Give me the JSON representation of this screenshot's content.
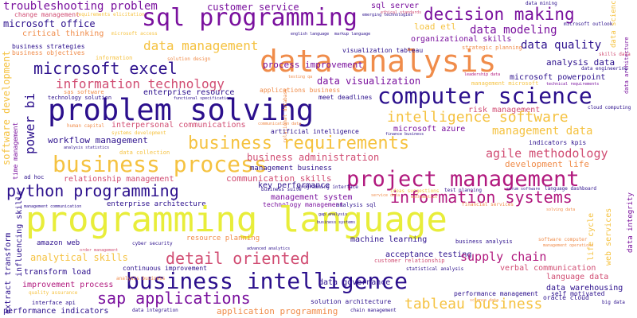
{
  "palette": {
    "purple": "#2b0f8c",
    "violet": "#7a119e",
    "magenta": "#b1197e",
    "rose": "#d14d73",
    "orange": "#f08c4a",
    "yellow": "#f5c240",
    "lime": "#e8ed3a"
  },
  "words": [
    {
      "text": "troubleshooting problem",
      "color": "violet"
    },
    {
      "text": "change management",
      "color": "rose"
    },
    {
      "text": "requirements elicitation",
      "color": "yellow"
    },
    {
      "text": "customer service",
      "color": "violet"
    },
    {
      "text": "sql server",
      "color": "violet"
    },
    {
      "text": "ethical standards",
      "color": "rose"
    },
    {
      "text": "data mining",
      "color": "purple"
    },
    {
      "text": "data science",
      "color": "yellow"
    },
    {
      "text": "sql programming",
      "color": "violet"
    },
    {
      "text": "decision making",
      "color": "violet"
    },
    {
      "text": "microsoft outlook",
      "color": "purple"
    },
    {
      "text": "microsoft office",
      "color": "purple"
    },
    {
      "text": "critical thinking",
      "color": "orange"
    },
    {
      "text": "microsoft access",
      "color": "yellow"
    },
    {
      "text": "data modeling",
      "color": "violet"
    },
    {
      "text": "data architecture",
      "color": "violet"
    },
    {
      "text": "load etl",
      "color": "yellow"
    },
    {
      "text": "emerging technologies",
      "color": "purple"
    },
    {
      "text": "english language",
      "color": "purple"
    },
    {
      "text": "markup language",
      "color": "purple"
    },
    {
      "text": "organizational skills",
      "color": "violet"
    },
    {
      "text": "data management",
      "color": "yellow"
    },
    {
      "text": "data analysis",
      "color": "orange"
    },
    {
      "text": "data quality",
      "color": "purple"
    },
    {
      "text": "business strategies",
      "color": "purple"
    },
    {
      "text": "business objectives",
      "color": "orange"
    },
    {
      "text": "process improvement",
      "color": "violet"
    },
    {
      "text": "visualization tableau",
      "color": "purple"
    },
    {
      "text": "strategic planning",
      "color": "orange"
    },
    {
      "text": "information",
      "color": "yellow"
    },
    {
      "text": "solution design",
      "color": "orange"
    },
    {
      "text": "analysis data",
      "color": "purple"
    },
    {
      "text": "skills data",
      "color": "rose"
    },
    {
      "text": "microsoft excel",
      "color": "purple"
    },
    {
      "text": "data engineering",
      "color": "purple"
    },
    {
      "text": "software development",
      "color": "yellow"
    },
    {
      "text": "information technology",
      "color": "rose"
    },
    {
      "text": "data visualization",
      "color": "violet"
    },
    {
      "text": "microsoft powerpoint",
      "color": "purple"
    },
    {
      "text": "leadership data",
      "color": "magenta"
    },
    {
      "text": "management microsoft",
      "color": "yellow"
    },
    {
      "text": "technical requirements",
      "color": "violet"
    },
    {
      "text": "testing qa",
      "color": "orange"
    },
    {
      "text": "applications business",
      "color": "orange"
    },
    {
      "text": "enterprise resource",
      "color": "purple"
    },
    {
      "text": "meet deadlines",
      "color": "purple"
    },
    {
      "text": "sas software",
      "color": "orange"
    },
    {
      "text": "technology solution",
      "color": "purple"
    },
    {
      "text": "functional specification",
      "color": "purple"
    },
    {
      "text": "problem solving",
      "color": "purple"
    },
    {
      "text": "computer science",
      "color": "purple"
    },
    {
      "text": "cloud computing",
      "color": "purple"
    },
    {
      "text": "relational database",
      "color": "orange"
    },
    {
      "text": "risk management",
      "color": "rose"
    },
    {
      "text": "power bi",
      "color": "purple"
    },
    {
      "text": "intelligence software",
      "color": "yellow"
    },
    {
      "text": "human capital",
      "color": "orange"
    },
    {
      "text": "interpersonal communications",
      "color": "rose"
    },
    {
      "text": "communication data",
      "color": "orange"
    },
    {
      "text": "microsoft azure",
      "color": "violet"
    },
    {
      "text": "management data",
      "color": "yellow"
    },
    {
      "text": "systems development",
      "color": "yellow"
    },
    {
      "text": "artificial intelligence",
      "color": "purple"
    },
    {
      "text": "finance business",
      "color": "purple"
    },
    {
      "text": "analysis statistics",
      "color": "purple"
    },
    {
      "text": "workflow management",
      "color": "purple"
    },
    {
      "text": "business requirements",
      "color": "yellow"
    },
    {
      "text": "indicators kpis",
      "color": "purple"
    },
    {
      "text": "data collection",
      "color": "yellow"
    },
    {
      "text": "agile methodology",
      "color": "rose"
    },
    {
      "text": "time management",
      "color": "violet"
    },
    {
      "text": "business process",
      "color": "yellow"
    },
    {
      "text": "business administration",
      "color": "rose"
    },
    {
      "text": "development life",
      "color": "orange"
    },
    {
      "text": "management business",
      "color": "purple"
    },
    {
      "text": "ad hoc",
      "color": "purple"
    },
    {
      "text": "relationship management",
      "color": "rose"
    },
    {
      "text": "communication skills",
      "color": "rose"
    },
    {
      "text": "project management",
      "color": "magenta"
    },
    {
      "text": "programming interface",
      "color": "purple"
    },
    {
      "text": "ideas suggestions",
      "color": "yellow"
    },
    {
      "text": "python programming",
      "color": "purple"
    },
    {
      "text": "information systems",
      "color": "magenta"
    },
    {
      "text": "key performance",
      "color": "purple"
    },
    {
      "text": "business suite",
      "color": "purple"
    },
    {
      "text": "test planning",
      "color": "purple"
    },
    {
      "text": "scrum software",
      "color": "purple"
    },
    {
      "text": "language dashboard",
      "color": "purple"
    },
    {
      "text": "enterprise architecture",
      "color": "purple"
    },
    {
      "text": "management system",
      "color": "violet"
    },
    {
      "text": "service data",
      "color": "orange"
    },
    {
      "text": "mathematics",
      "color": "orange"
    },
    {
      "text": "technology management",
      "color": "violet"
    },
    {
      "text": "analysis sql",
      "color": "purple"
    },
    {
      "text": "financial services",
      "color": "orange"
    },
    {
      "text": "solving data",
      "color": "orange"
    },
    {
      "text": "programming language",
      "color": "lime"
    },
    {
      "text": "management communication",
      "color": "purple"
    },
    {
      "text": "influencing skills",
      "color": "purple"
    },
    {
      "text": "gap analysis",
      "color": "purple"
    },
    {
      "text": "business systems",
      "color": "purple"
    },
    {
      "text": "resource planning",
      "color": "orange"
    },
    {
      "text": "amazon web",
      "color": "purple"
    },
    {
      "text": "cyber security",
      "color": "purple"
    },
    {
      "text": "machine learning",
      "color": "purple"
    },
    {
      "text": "business analysis",
      "color": "purple"
    },
    {
      "text": "software computer",
      "color": "orange"
    },
    {
      "text": "management operations",
      "color": "orange"
    },
    {
      "text": "data integrity",
      "color": "violet"
    },
    {
      "text": "life cycle",
      "color": "yellow"
    },
    {
      "text": "web services",
      "color": "yellow"
    },
    {
      "text": "extract transform",
      "color": "purple"
    },
    {
      "text": "order management",
      "color": "rose"
    },
    {
      "text": "advanced analytics",
      "color": "purple"
    },
    {
      "text": "analytical skills",
      "color": "yellow"
    },
    {
      "text": "acceptance testing",
      "color": "purple"
    },
    {
      "text": "supply chain",
      "color": "magenta"
    },
    {
      "text": "detail oriented",
      "color": "rose"
    },
    {
      "text": "transform load",
      "color": "purple"
    },
    {
      "text": "continuous improvement",
      "color": "purple"
    },
    {
      "text": "customer relationship",
      "color": "rose"
    },
    {
      "text": "statistical analysis",
      "color": "purple"
    },
    {
      "text": "verbal communication",
      "color": "rose"
    },
    {
      "text": "business intelligence",
      "color": "purple"
    },
    {
      "text": "sap applications",
      "color": "violet"
    },
    {
      "text": "analysis business",
      "color": "orange"
    },
    {
      "text": "language data",
      "color": "rose"
    },
    {
      "text": "improvement process",
      "color": "magenta"
    },
    {
      "text": "data governance",
      "color": "purple"
    },
    {
      "text": "data warehousing",
      "color": "purple"
    },
    {
      "text": "quality assurance",
      "color": "yellow"
    },
    {
      "text": "performance management",
      "color": "purple"
    },
    {
      "text": "oracle cloud",
      "color": "purple"
    },
    {
      "text": "self motivated",
      "color": "purple"
    },
    {
      "text": "science data",
      "color": "orange"
    },
    {
      "text": "interface api",
      "color": "purple"
    },
    {
      "text": "solution architecture",
      "color": "purple"
    },
    {
      "text": "tableau business",
      "color": "yellow"
    },
    {
      "text": "big data",
      "color": "purple"
    },
    {
      "text": "performance indicators",
      "color": "purple"
    },
    {
      "text": "data integration",
      "color": "purple"
    },
    {
      "text": "application programming",
      "color": "orange"
    },
    {
      "text": "chain management",
      "color": "purple"
    }
  ]
}
